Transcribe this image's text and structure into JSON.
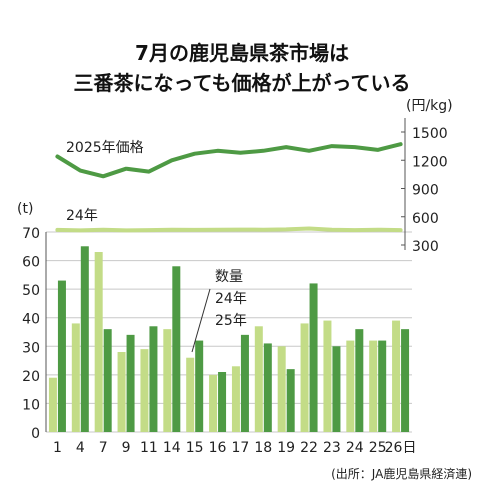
{
  "chart_data": {
    "type": "bar+line",
    "title_line1": "7月の鹿児島県茶市場は",
    "title_line2": "三番茶になっても価格が上がっている",
    "categories": [
      "1",
      "4",
      "7",
      "9",
      "11",
      "14",
      "15",
      "16",
      "17",
      "18",
      "19",
      "22",
      "23",
      "24",
      "25",
      "26日"
    ],
    "bar_series": [
      {
        "name": "24年",
        "color": "#c3dc87",
        "values": [
          19,
          38,
          63,
          28,
          29,
          36,
          26,
          20,
          23,
          37,
          30,
          38,
          39,
          32,
          32,
          39
        ]
      },
      {
        "name": "25年",
        "color": "#4e9a44",
        "values": [
          53,
          65,
          36,
          34,
          37,
          58,
          32,
          21,
          34,
          31,
          22,
          52,
          30,
          36,
          32,
          36
        ]
      }
    ],
    "bar_axis": {
      "unit": "(t)",
      "min": 0,
      "max": 70,
      "ticks": [
        0,
        10,
        20,
        30,
        40,
        50,
        60,
        70
      ]
    },
    "line_series": [
      {
        "name": "2025年価格",
        "color": "#4e9a44",
        "values": [
          1240,
          1090,
          1030,
          1110,
          1080,
          1200,
          1270,
          1300,
          1280,
          1300,
          1340,
          1300,
          1350,
          1340,
          1310,
          1370
        ]
      },
      {
        "name": "24年",
        "color": "#c3dc87",
        "values": [
          460,
          455,
          462,
          455,
          458,
          462,
          460,
          462,
          464,
          462,
          466,
          475,
          462,
          458,
          462,
          458
        ]
      }
    ],
    "line_axis": {
      "unit": "(円/kg)",
      "min": 300,
      "max": 1500,
      "ticks": [
        300,
        600,
        900,
        1200,
        1500
      ]
    },
    "legend_title": "数量",
    "legend_items": [
      "24年",
      "25年"
    ],
    "source": "(出所：JA鹿児島県経済連)"
  }
}
